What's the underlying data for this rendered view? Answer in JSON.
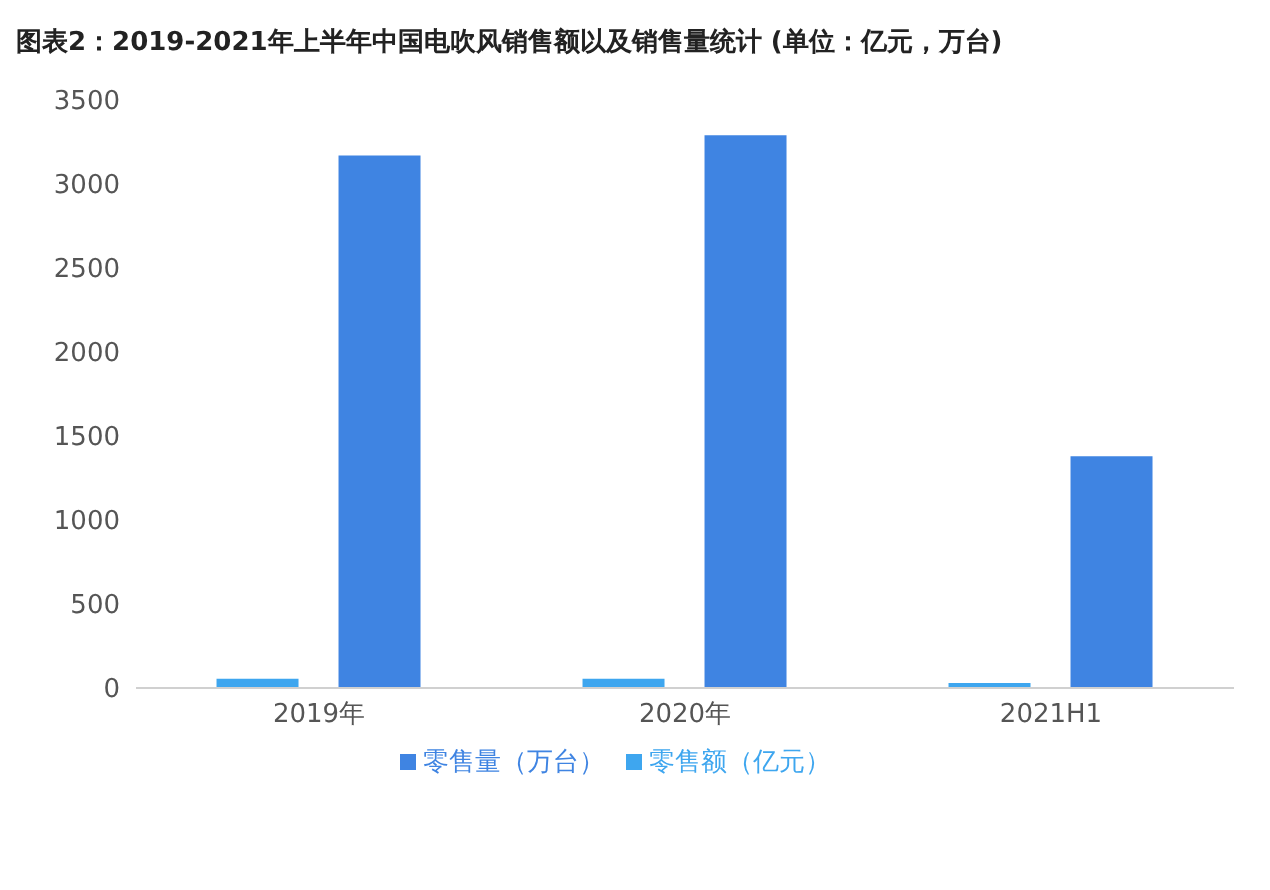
{
  "chart_data": {
    "type": "bar",
    "title": "图表2：2019-2021年上半年中国电吹风销售额以及销售量统计 (单位：亿元，万台)",
    "categories": [
      "2019年",
      "2020年",
      "2021H1"
    ],
    "series": [
      {
        "name": "零售额（亿元）",
        "color": "#3ea6ef",
        "values": [
          55,
          55,
          30
        ]
      },
      {
        "name": "零售量（万台）",
        "color": "#3f84e2",
        "values": [
          3170,
          3290,
          1380
        ]
      }
    ],
    "ylim": [
      0,
      3500
    ],
    "yticks": [
      0,
      500,
      1000,
      1500,
      2000,
      2500,
      3000,
      3500
    ],
    "grid": false,
    "legend": "bottom"
  }
}
